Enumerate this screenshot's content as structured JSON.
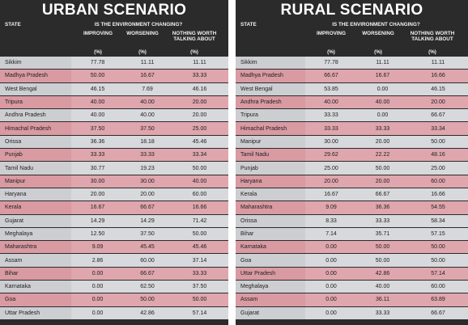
{
  "urban": {
    "title": "URBAN SCENARIO",
    "state_header": "STATE",
    "question": "IS THE ENVIRONMENT CHANGING?",
    "columns": [
      "IMPROVING",
      "WORSENING",
      "NOTHING WORTH TALKING ABOUT"
    ],
    "units": [
      "(%)",
      "(%)",
      "(%)"
    ],
    "rows": [
      {
        "state": "Sikkim",
        "v": [
          "77.78",
          "11.11",
          "11.11"
        ],
        "style": "gray"
      },
      {
        "state": "Madhya Pradesh",
        "v": [
          "50.00",
          "16.67",
          "33.33"
        ],
        "style": "pink"
      },
      {
        "state": "West Bengal",
        "v": [
          "46.15",
          "7.69",
          "46.16"
        ],
        "style": "gray"
      },
      {
        "state": "Tripura",
        "v": [
          "40.00",
          "40.00",
          "20.00"
        ],
        "style": "pink"
      },
      {
        "state": "Andhra Pradesh",
        "v": [
          "40.00",
          "40.00",
          "20.00"
        ],
        "style": "gray"
      },
      {
        "state": "Himachal Pradesh",
        "v": [
          "37.50",
          "37.50",
          "25.00"
        ],
        "style": "pink"
      },
      {
        "state": "Orissa",
        "v": [
          "36.36",
          "18.18",
          "45.46"
        ],
        "style": "gray"
      },
      {
        "state": "Punjab",
        "v": [
          "33.33",
          "33.33",
          "33.34"
        ],
        "style": "pink"
      },
      {
        "state": "Tamil Nadu",
        "v": [
          "30.77",
          "19.23",
          "50.00"
        ],
        "style": "gray"
      },
      {
        "state": "Manipur",
        "v": [
          "30.00",
          "30.00",
          "40.00"
        ],
        "style": "pink"
      },
      {
        "state": "Haryana",
        "v": [
          "20.00",
          "20.00",
          "60.00"
        ],
        "style": "gray"
      },
      {
        "state": "Kerala",
        "v": [
          "16.67",
          "66.67",
          "16.66"
        ],
        "style": "pink"
      },
      {
        "state": "Gujarat",
        "v": [
          "14.29",
          "14.29",
          "71.42"
        ],
        "style": "gray"
      },
      {
        "state": "Meghalaya",
        "v": [
          "12.50",
          "37.50",
          "50.00"
        ],
        "style": "gray"
      },
      {
        "state": "Maharashtra",
        "v": [
          "9.09",
          "45.45",
          "45.46"
        ],
        "style": "pink"
      },
      {
        "state": "Assam",
        "v": [
          "2.86",
          "60.00",
          "37.14"
        ],
        "style": "gray"
      },
      {
        "state": "Bihar",
        "v": [
          "0.00",
          "66.67",
          "33.33"
        ],
        "style": "pink"
      },
      {
        "state": "Karnataka",
        "v": [
          "0.00",
          "62.50",
          "37.50"
        ],
        "style": "gray"
      },
      {
        "state": "Goa",
        "v": [
          "0.00",
          "50.00",
          "50.00"
        ],
        "style": "pink"
      },
      {
        "state": "Uttar Pradesh",
        "v": [
          "0.00",
          "42.86",
          "57.14"
        ],
        "style": "gray"
      }
    ]
  },
  "rural": {
    "title": "RURAL SCENARIO",
    "state_header": "STATE",
    "question": "IS THE ENVIRONMENT CHANGING?",
    "columns": [
      "IMPROVING",
      "WORSENING",
      "NOTHING WORTH TALKING ABOUT"
    ],
    "units": [
      "(%)",
      "(%)",
      "(%)"
    ],
    "rows": [
      {
        "state": "Sikkim",
        "v": [
          "77.78",
          "11.11",
          "11.11"
        ],
        "style": "gray"
      },
      {
        "state": "Madhya Pradesh",
        "v": [
          "66.67",
          "16.67",
          "16.66"
        ],
        "style": "pink"
      },
      {
        "state": "West Bengal",
        "v": [
          "53.85",
          "0.00",
          "46.15"
        ],
        "style": "gray"
      },
      {
        "state": "Andhra Pradesh",
        "v": [
          "40.00",
          "40.00",
          "20.00"
        ],
        "style": "pink"
      },
      {
        "state": "Tripura",
        "v": [
          "33.33",
          "0.00",
          "66.67"
        ],
        "style": "gray"
      },
      {
        "state": "Himachal Pradesh",
        "v": [
          "33.33",
          "33.33",
          "33.34"
        ],
        "style": "pink"
      },
      {
        "state": "Manipur",
        "v": [
          "30.00",
          "20.00",
          "50.00"
        ],
        "style": "gray"
      },
      {
        "state": "Tamil Nadu",
        "v": [
          "29.62",
          "22.22",
          "48.16"
        ],
        "style": "pink"
      },
      {
        "state": "Punjab",
        "v": [
          "25.00",
          "50.00",
          "25.00"
        ],
        "style": "gray"
      },
      {
        "state": "Haryana",
        "v": [
          "20.00",
          "20.00",
          "60.00"
        ],
        "style": "pink"
      },
      {
        "state": "Kerala",
        "v": [
          "16.67",
          "66.67",
          "16.66"
        ],
        "style": "gray"
      },
      {
        "state": "Maharashtra",
        "v": [
          "9.09",
          "36.36",
          "54.55"
        ],
        "style": "pink"
      },
      {
        "state": "Orissa",
        "v": [
          "8.33",
          "33.33",
          "58.34"
        ],
        "style": "gray"
      },
      {
        "state": "Bihar",
        "v": [
          "7.14",
          "35.71",
          "57.15"
        ],
        "style": "gray"
      },
      {
        "state": "Karnataka",
        "v": [
          "0.00",
          "50.00",
          "50.00"
        ],
        "style": "pink"
      },
      {
        "state": "Goa",
        "v": [
          "0.00",
          "50.00",
          "50.00"
        ],
        "style": "gray"
      },
      {
        "state": "Uttar Pradesh",
        "v": [
          "0.00",
          "42.86",
          "57.14"
        ],
        "style": "pink"
      },
      {
        "state": "Meghalaya",
        "v": [
          "0.00",
          "40.00",
          "60.00"
        ],
        "style": "gray"
      },
      {
        "state": "Assam",
        "v": [
          "0.00",
          "36.11",
          "63.89"
        ],
        "style": "pink"
      },
      {
        "state": "Gujarat",
        "v": [
          "0.00",
          "33.33",
          "66.67"
        ],
        "style": "gray"
      }
    ]
  }
}
